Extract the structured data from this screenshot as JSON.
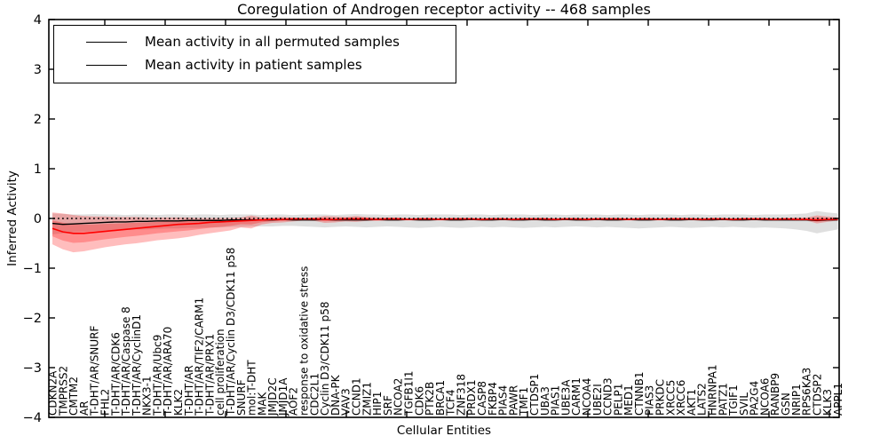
{
  "chart_data": {
    "type": "line",
    "title": "Coregulation of Androgen receptor activity -- 468 samples",
    "xlabel": "Cellular Entities",
    "ylabel": "Inferred Activity",
    "ylim": [
      -4,
      4
    ],
    "yticks": [
      -4,
      -3,
      -2,
      -1,
      0,
      1,
      2,
      3,
      4
    ],
    "grid": false,
    "legend_position": "upper-left",
    "reference_line": {
      "y": 0,
      "style": "dotted",
      "color": "#000000"
    },
    "categories": [
      "CDKN2A",
      "TMPRSS2",
      "CMTM2",
      "AR",
      "T-DHT/AR/SNURF",
      "FHL2",
      "T-DHT/AR/CDK6",
      "T-DHT/AR/Caspase 8",
      "T-DHT/AR/CyclinD1",
      "NKX3-1",
      "T-DHT/AR/Ubc9",
      "T-DHT/AR/ARA70",
      "KLK2",
      "T-DHT/AR",
      "T-DHT/AR/TIF2/CARM1",
      "T-DHT/AR/PRX1",
      "cell proliferation",
      "T-DHT/AR/Cyclin D3/CDK11 p58",
      "SNURF",
      "mol:T-DHT",
      "MAK",
      "JMJD2C",
      "JMJD1A",
      "AOF2",
      "response to oxidative stress",
      "CDC2L1",
      "Cyclin D3/CDK11 p58",
      "DNA-PK",
      "VAV3",
      "CCND1",
      "ZMIZ1",
      "HIP1",
      "SRF",
      "NCOA2",
      "TGFB1I1",
      "CDK6",
      "PTK2B",
      "BRCA1",
      "TCF4",
      "ZNF318",
      "PRDX1",
      "CASP8",
      "FKBP4",
      "PIAS4",
      "PAWR",
      "TMF1",
      "CTDSP1",
      "UBA3",
      "PIAS1",
      "UBE3A",
      "CARM1",
      "NCOA4",
      "UBE2I",
      "CCND3",
      "PELP1",
      "MED1",
      "CTNNB1",
      "PIAS3",
      "PRKDC",
      "XRCC5",
      "XRCC6",
      "AKT1",
      "LATS2",
      "HNRNPA1",
      "PATZ1",
      "TGIF1",
      "SVIL",
      "PA2G4",
      "NCOA6",
      "RANBP9",
      "GSN",
      "NRIP1",
      "RPS6KA3",
      "CTDSP2",
      "KLK3",
      "APPL1"
    ],
    "series": [
      {
        "name": "Mean activity in all permuted samples",
        "color": "#000000",
        "band_color": "rgba(128,128,128,0.25)",
        "values": [
          -0.1,
          -0.12,
          -0.11,
          -0.1,
          -0.09,
          -0.08,
          -0.07,
          -0.07,
          -0.06,
          -0.06,
          -0.05,
          -0.05,
          -0.05,
          -0.04,
          -0.04,
          -0.04,
          -0.04,
          -0.03,
          -0.03,
          -0.03,
          -0.03,
          -0.03,
          -0.02,
          -0.03,
          -0.03,
          -0.03,
          -0.02,
          -0.03,
          -0.03,
          -0.03,
          -0.03,
          -0.02,
          -0.03,
          -0.03,
          -0.02,
          -0.03,
          -0.03,
          -0.02,
          -0.03,
          -0.03,
          -0.02,
          -0.03,
          -0.03,
          -0.02,
          -0.03,
          -0.03,
          -0.02,
          -0.03,
          -0.03,
          -0.02,
          -0.03,
          -0.03,
          -0.02,
          -0.03,
          -0.03,
          -0.02,
          -0.03,
          -0.03,
          -0.02,
          -0.03,
          -0.03,
          -0.02,
          -0.03,
          -0.03,
          -0.02,
          -0.03,
          -0.03,
          -0.02,
          -0.03,
          -0.03,
          -0.03,
          -0.03,
          -0.03,
          -0.04,
          -0.03,
          -0.03
        ],
        "band_upper": [
          0.1,
          0.09,
          0.08,
          0.08,
          0.09,
          0.08,
          0.08,
          0.07,
          0.08,
          0.08,
          0.07,
          0.08,
          0.08,
          0.07,
          0.08,
          0.08,
          0.07,
          0.08,
          0.08,
          0.08,
          0.07,
          0.08,
          0.08,
          0.07,
          0.08,
          0.08,
          0.08,
          0.07,
          0.08,
          0.09,
          0.08,
          0.08,
          0.07,
          0.08,
          0.08,
          0.07,
          0.08,
          0.08,
          0.08,
          0.07,
          0.08,
          0.08,
          0.07,
          0.08,
          0.08,
          0.08,
          0.07,
          0.08,
          0.08,
          0.07,
          0.08,
          0.08,
          0.08,
          0.07,
          0.08,
          0.08,
          0.07,
          0.08,
          0.08,
          0.08,
          0.07,
          0.08,
          0.08,
          0.07,
          0.08,
          0.08,
          0.08,
          0.07,
          0.08,
          0.08,
          0.08,
          0.09,
          0.1,
          0.15,
          0.12,
          0.1
        ],
        "band_lower": [
          -0.32,
          -0.3,
          -0.28,
          -0.27,
          -0.26,
          -0.25,
          -0.24,
          -0.23,
          -0.22,
          -0.22,
          -0.21,
          -0.2,
          -0.2,
          -0.19,
          -0.19,
          -0.18,
          -0.18,
          -0.17,
          -0.17,
          -0.16,
          -0.16,
          -0.16,
          -0.15,
          -0.15,
          -0.16,
          -0.17,
          -0.18,
          -0.17,
          -0.16,
          -0.17,
          -0.18,
          -0.17,
          -0.16,
          -0.17,
          -0.18,
          -0.19,
          -0.18,
          -0.17,
          -0.18,
          -0.19,
          -0.18,
          -0.17,
          -0.18,
          -0.17,
          -0.18,
          -0.19,
          -0.18,
          -0.17,
          -0.18,
          -0.17,
          -0.16,
          -0.17,
          -0.18,
          -0.17,
          -0.18,
          -0.19,
          -0.2,
          -0.19,
          -0.18,
          -0.17,
          -0.18,
          -0.19,
          -0.18,
          -0.17,
          -0.18,
          -0.17,
          -0.18,
          -0.19,
          -0.18,
          -0.19,
          -0.2,
          -0.22,
          -0.25,
          -0.3,
          -0.26,
          -0.22
        ]
      },
      {
        "name": "Mean activity in patient samples",
        "color": "#ff0000",
        "band_color": "rgba(255,0,0,0.26)",
        "values": [
          -0.2,
          -0.27,
          -0.3,
          -0.3,
          -0.28,
          -0.26,
          -0.24,
          -0.22,
          -0.2,
          -0.18,
          -0.16,
          -0.14,
          -0.12,
          -0.11,
          -0.1,
          -0.08,
          -0.07,
          -0.06,
          -0.05,
          -0.04,
          -0.03,
          -0.02,
          -0.02,
          -0.01,
          -0.01,
          -0.01,
          -0.02,
          -0.02,
          -0.01,
          -0.01,
          -0.01,
          -0.02,
          -0.01,
          -0.01,
          -0.02,
          -0.01,
          -0.01,
          -0.02,
          -0.01,
          -0.01,
          -0.01,
          -0.02,
          -0.01,
          -0.01,
          -0.02,
          -0.01,
          -0.01,
          -0.01,
          -0.02,
          -0.01,
          -0.01,
          -0.02,
          -0.01,
          -0.01,
          -0.01,
          -0.02,
          -0.01,
          -0.01,
          -0.02,
          -0.01,
          -0.01,
          -0.01,
          -0.02,
          -0.01,
          -0.01,
          -0.02,
          -0.01,
          -0.01,
          -0.01,
          -0.02,
          -0.01,
          -0.02,
          -0.02,
          -0.03,
          -0.02,
          -0.02
        ],
        "band_upper": [
          0.12,
          0.1,
          0.07,
          0.05,
          0.04,
          0.04,
          0.03,
          0.03,
          0.03,
          0.02,
          0.02,
          0.02,
          0.02,
          0.02,
          0.01,
          0.01,
          0.01,
          0.01,
          0.02,
          0.06,
          0.02,
          0.02,
          0.03,
          0.02,
          0.01,
          0.02,
          0.05,
          0.04,
          0.03,
          0.05,
          0.03,
          0.02,
          0.02,
          0.02,
          0.01,
          0.01,
          0.01,
          0.01,
          0.01,
          0.01,
          0.01,
          0.01,
          0.01,
          0.01,
          0.01,
          0.01,
          0.01,
          0.01,
          0.01,
          0.01,
          0.01,
          0.01,
          0.01,
          0.01,
          0.01,
          0.01,
          0.01,
          0.01,
          0.01,
          0.01,
          0.01,
          0.01,
          0.01,
          0.01,
          0.01,
          0.01,
          0.01,
          0.01,
          0.01,
          0.01,
          0.01,
          0.02,
          0.02,
          0.06,
          0.04,
          0.02
        ],
        "band_lower": [
          -0.52,
          -0.62,
          -0.68,
          -0.66,
          -0.62,
          -0.58,
          -0.55,
          -0.52,
          -0.5,
          -0.47,
          -0.44,
          -0.42,
          -0.4,
          -0.37,
          -0.33,
          -0.3,
          -0.27,
          -0.24,
          -0.18,
          -0.2,
          -0.12,
          -0.09,
          -0.08,
          -0.06,
          -0.04,
          -0.05,
          -0.09,
          -0.08,
          -0.06,
          -0.07,
          -0.05,
          -0.05,
          -0.04,
          -0.04,
          -0.03,
          -0.03,
          -0.03,
          -0.03,
          -0.03,
          -0.03,
          -0.03,
          -0.03,
          -0.03,
          -0.03,
          -0.03,
          -0.03,
          -0.03,
          -0.03,
          -0.03,
          -0.03,
          -0.03,
          -0.03,
          -0.03,
          -0.03,
          -0.03,
          -0.03,
          -0.03,
          -0.03,
          -0.03,
          -0.03,
          -0.03,
          -0.03,
          -0.03,
          -0.03,
          -0.03,
          -0.03,
          -0.03,
          -0.03,
          -0.03,
          -0.03,
          -0.03,
          -0.04,
          -0.04,
          -0.1,
          -0.07,
          -0.04
        ]
      }
    ]
  }
}
